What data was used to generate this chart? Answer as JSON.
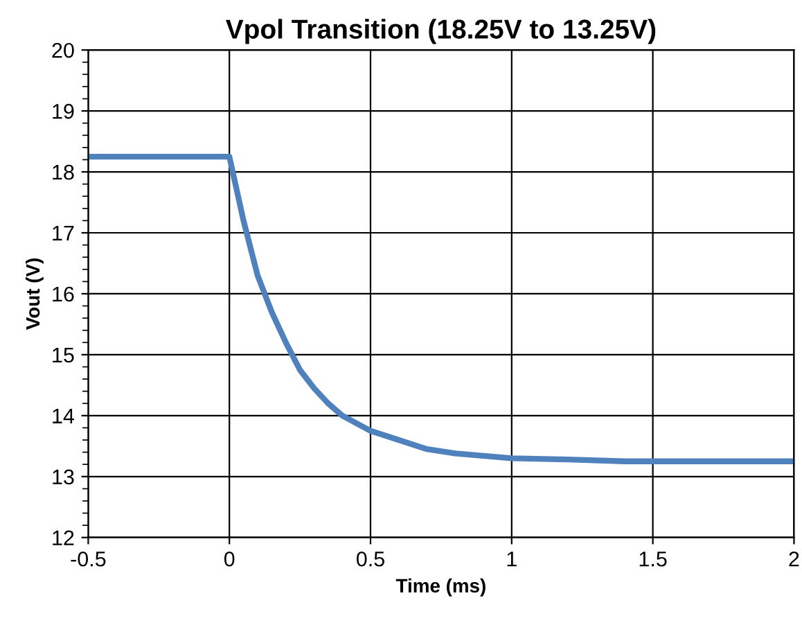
{
  "chart_data": {
    "type": "line",
    "title": "Vpol Transition (18.25V to 13.25V)",
    "xlabel": "Time (ms)",
    "ylabel": "Vout (V)",
    "series": [
      {
        "color": "#4f81bd",
        "x": [
          -0.5,
          0,
          0.05,
          0.1,
          0.15,
          0.2,
          0.25,
          0.3,
          0.35,
          0.4,
          0.5,
          0.6,
          0.7,
          0.8,
          1.0,
          1.2,
          1.4,
          2.0
        ],
        "values": [
          18.25,
          18.25,
          17.2,
          16.3,
          15.7,
          15.2,
          14.75,
          14.45,
          14.2,
          14.0,
          13.75,
          13.6,
          13.45,
          13.38,
          13.3,
          13.28,
          13.25,
          13.25
        ]
      }
    ],
    "xlim": [
      -0.5,
      2
    ],
    "xticks": [
      -0.5,
      0,
      0.5,
      1,
      1.5,
      2
    ],
    "ylim": [
      12,
      20
    ],
    "yticks": [
      12,
      13,
      14,
      15,
      16,
      17,
      18,
      19,
      20
    ],
    "grid": true,
    "marker": "none",
    "line_style": "solid"
  }
}
